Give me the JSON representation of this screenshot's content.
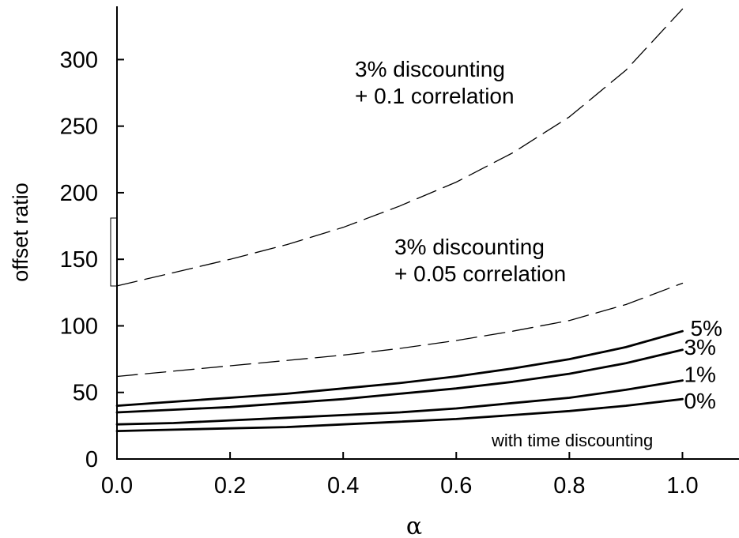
{
  "chart_data": {
    "type": "line",
    "xlabel": "α",
    "ylabel": "offset ratio",
    "xlim": [
      0.0,
      1.1
    ],
    "ylim": [
      0,
      340
    ],
    "x_ticks": [
      "0.0",
      "0.2",
      "0.4",
      "0.6",
      "0.8",
      "1.0"
    ],
    "y_ticks": [
      "0",
      "50",
      "100",
      "150",
      "200",
      "250",
      "300"
    ],
    "x": [
      0.0,
      0.1,
      0.2,
      0.3,
      0.4,
      0.5,
      0.6,
      0.7,
      0.8,
      0.9,
      1.0
    ],
    "series": [
      {
        "name": "0%",
        "style": "solid",
        "values": [
          21,
          22,
          23,
          24,
          26,
          28,
          30,
          33,
          36,
          40,
          45
        ]
      },
      {
        "name": "1%",
        "style": "solid",
        "values": [
          26,
          27,
          29,
          31,
          33,
          35,
          38,
          42,
          46,
          52,
          59
        ]
      },
      {
        "name": "3%",
        "style": "solid",
        "values": [
          35,
          37,
          39,
          42,
          45,
          49,
          53,
          58,
          64,
          72,
          82
        ]
      },
      {
        "name": "5%",
        "style": "solid",
        "values": [
          40,
          43,
          46,
          49,
          53,
          57,
          62,
          68,
          75,
          84,
          96
        ]
      },
      {
        "name": "",
        "style": "dashed",
        "values": [
          62,
          66,
          70,
          74,
          78,
          83,
          89,
          96,
          104,
          116,
          132
        ]
      },
      {
        "name": "",
        "style": "dashed",
        "values": [
          130,
          140,
          150,
          161,
          174,
          190,
          208,
          230,
          257,
          292,
          338
        ]
      }
    ],
    "annotations": [
      {
        "lines": [
          "3% discounting",
          "+ 0.1 correlation"
        ]
      },
      {
        "lines": [
          "3%  discounting",
          "+ 0.05 correlation"
        ]
      },
      {
        "lines": [
          "with time discounting"
        ]
      }
    ],
    "grid": false,
    "legend": "none"
  }
}
